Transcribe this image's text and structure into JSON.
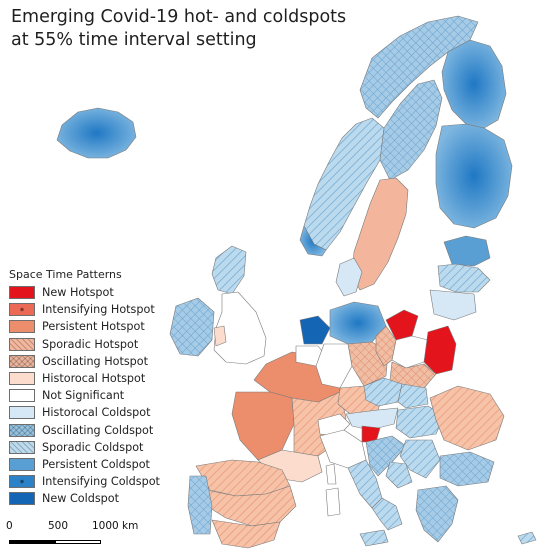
{
  "title": {
    "line1": "Emerging Covid-19 hot- and coldspots",
    "line2": "at 55% time interval setting"
  },
  "legend": {
    "title": "Space Time Patterns",
    "items": [
      {
        "label": "New Hotspot",
        "fill": "#e3141c",
        "pattern": "solid"
      },
      {
        "label": "Intensifying Hotspot",
        "fill": "#ea6a55",
        "pattern": "dot"
      },
      {
        "label": "Persistent Hotspot",
        "fill": "#ec8e6b",
        "pattern": "solid"
      },
      {
        "label": "Sporadic Hotspot",
        "fill": "#f3b69c",
        "pattern": "hatch"
      },
      {
        "label": "Oscillating Hotspot",
        "fill": "#e9b29a",
        "pattern": "crosshatch"
      },
      {
        "label": "Historocal Hotspot",
        "fill": "#fbdccd",
        "pattern": "solid"
      },
      {
        "label": "Not Significant",
        "fill": "#ffffff",
        "pattern": "solid"
      },
      {
        "label": "Historocal Coldspot",
        "fill": "#d6e8f5",
        "pattern": "solid"
      },
      {
        "label": "Oscillating Coldspot",
        "fill": "#92c0df",
        "pattern": "crosshatch"
      },
      {
        "label": "Sporadic Coldspot",
        "fill": "#bcdaee",
        "pattern": "hatch"
      },
      {
        "label": "Persistent Coldspot",
        "fill": "#5a9fd4",
        "pattern": "solid"
      },
      {
        "label": "Intensifying Coldspot",
        "fill": "#2b82c9",
        "pattern": "dot"
      },
      {
        "label": "New Coldspot",
        "fill": "#1565b5",
        "pattern": "solid"
      }
    ]
  },
  "scale": {
    "labels": [
      "0",
      "500",
      "1000 km"
    ]
  },
  "colors": {
    "border": "#7a7a7a",
    "sea": "#ffffff"
  }
}
